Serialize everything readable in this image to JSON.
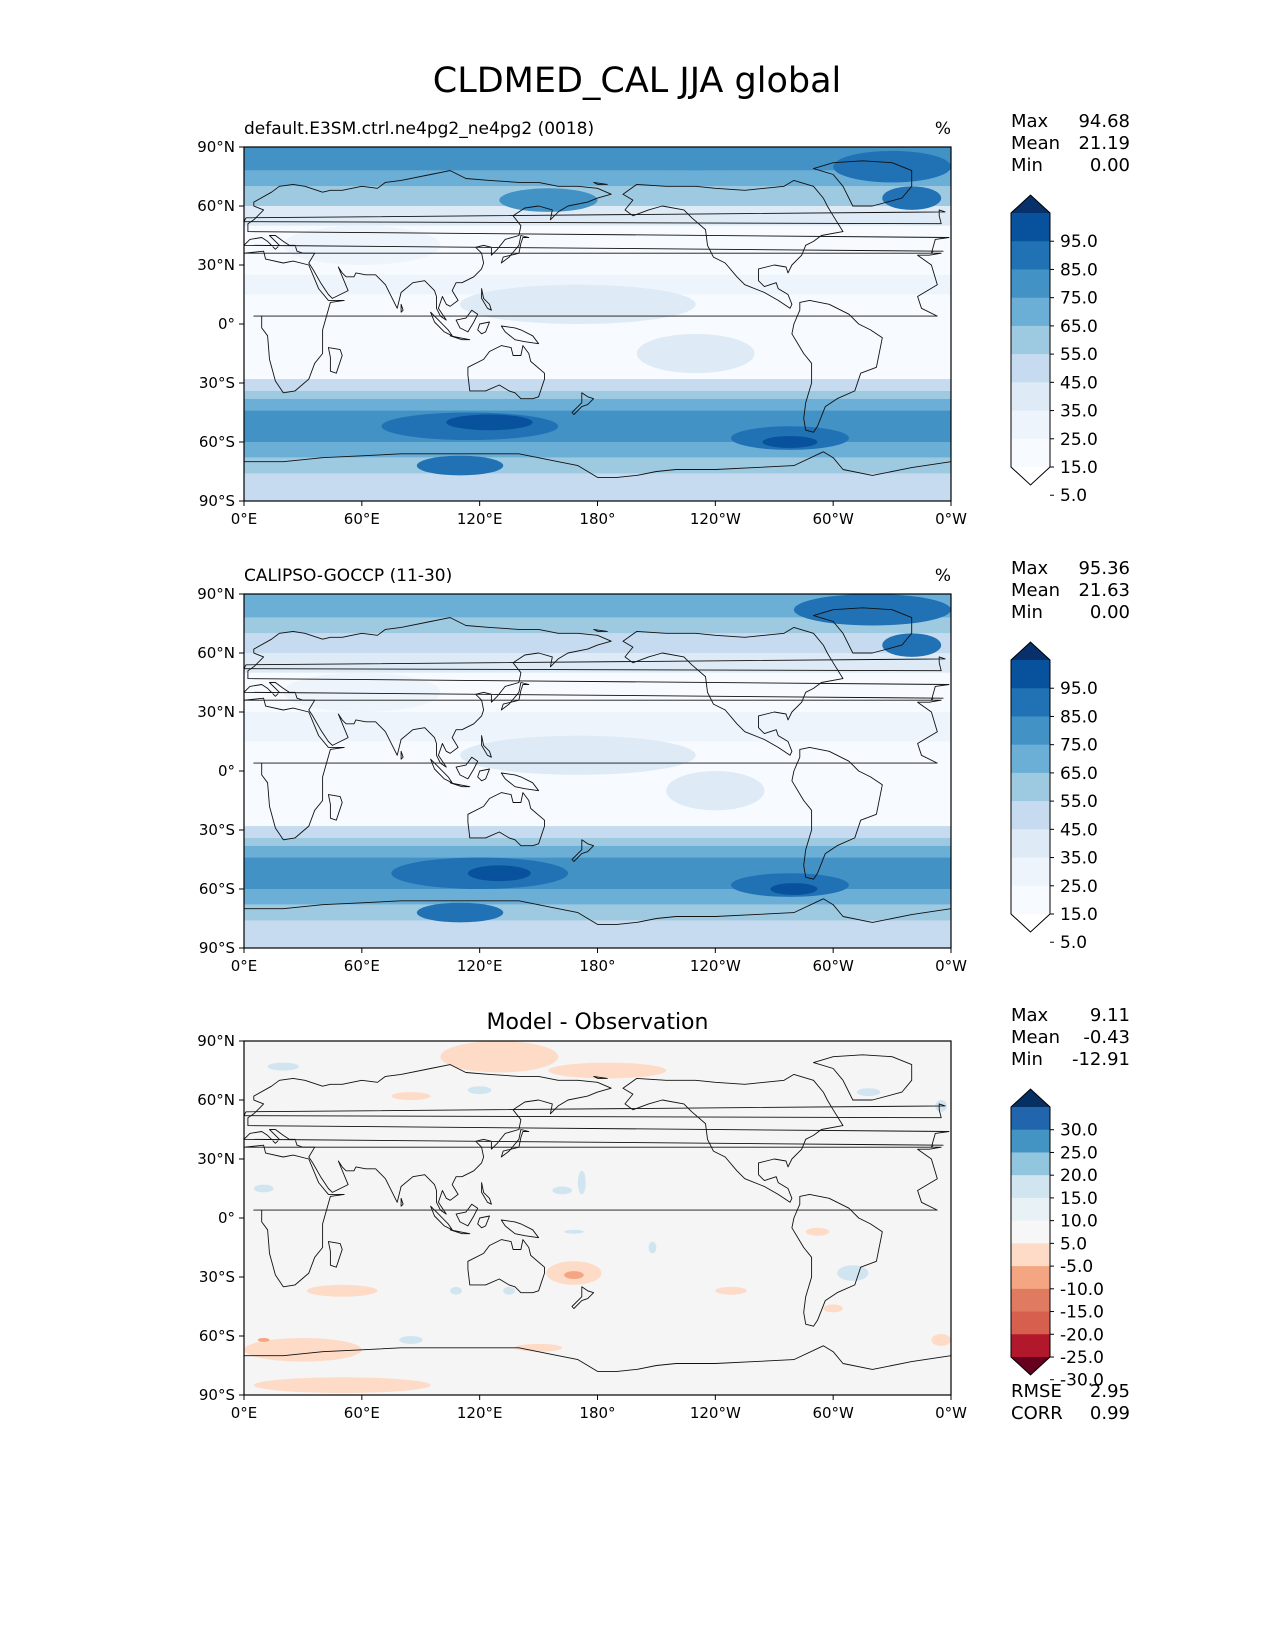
{
  "chart_data": {
    "title": "CLDMED_CAL JJA global",
    "xticks": [
      "0°E",
      "60°E",
      "120°E",
      "180°",
      "120°W",
      "60°W",
      "0°W"
    ],
    "yticks": [
      "90°N",
      "60°N",
      "30°N",
      "0°",
      "30°S",
      "60°S",
      "90°S"
    ],
    "panels": [
      {
        "type": "heatmap",
        "name": "model",
        "title_left": "default.E3SM.ctrl.ne4pg2_ne4pg2 (0018)",
        "title_right": "%",
        "title_center": "",
        "stats": [
          {
            "label": "Max",
            "value": "94.68"
          },
          {
            "label": "Mean",
            "value": "21.19"
          },
          {
            "label": "Min",
            "value": "0.00"
          }
        ],
        "colorbar": {
          "levels": [
            "95.0",
            "85.0",
            "75.0",
            "65.0",
            "55.0",
            "45.0",
            "35.0",
            "25.0",
            "15.0",
            "5.0"
          ],
          "colors": [
            "#08306b",
            "#08519c",
            "#2171b5",
            "#4292c6",
            "#6baed6",
            "#9ecae1",
            "#c6dbef",
            "#deebf7",
            "#eef4fb",
            "#f7fbff",
            "#ffffff"
          ]
        },
        "ocean": "#f7fbff",
        "bands": [
          {
            "lat": [
              90,
              78
            ],
            "color": "#4292c6"
          },
          {
            "lat": [
              78,
              70
            ],
            "color": "#6baed6"
          },
          {
            "lat": [
              70,
              60
            ],
            "color": "#9ecae1"
          },
          {
            "lat": [
              60,
              50
            ],
            "color": "#deebf7"
          },
          {
            "lat": [
              25,
              15
            ],
            "color": "#eef4fb"
          },
          {
            "lat": [
              -28,
              -34
            ],
            "color": "#c6dbef"
          },
          {
            "lat": [
              -34,
              -38
            ],
            "color": "#9ecae1"
          },
          {
            "lat": [
              -38,
              -44
            ],
            "color": "#6baed6"
          },
          {
            "lat": [
              -44,
              -60
            ],
            "color": "#4292c6"
          },
          {
            "lat": [
              -60,
              -68
            ],
            "color": "#6baed6"
          },
          {
            "lat": [
              -68,
              -76
            ],
            "color": "#9ecae1"
          },
          {
            "lat": [
              -76,
              -90
            ],
            "color": "#c6dbef"
          }
        ],
        "blobs": [
          {
            "lon": 115,
            "lat": -52,
            "rlon": 45,
            "rlat": 7,
            "color": "#2171b5"
          },
          {
            "lon": 125,
            "lat": -50,
            "rlon": 22,
            "rlat": 4,
            "color": "#08519c"
          },
          {
            "lon": 110,
            "lat": -72,
            "rlon": 22,
            "rlat": 5,
            "color": "#2171b5"
          },
          {
            "lon": 278,
            "lat": -58,
            "rlon": 30,
            "rlat": 6,
            "color": "#2171b5"
          },
          {
            "lon": 278,
            "lat": -60,
            "rlon": 14,
            "rlat": 3,
            "color": "#08519c"
          },
          {
            "lon": 155,
            "lat": 63,
            "rlon": 25,
            "rlat": 6,
            "color": "#4292c6"
          },
          {
            "lon": 230,
            "lat": 84,
            "rlon": 50,
            "rlat": 6,
            "color": "#4292c6"
          },
          {
            "lon": 330,
            "lat": 80,
            "rlon": 30,
            "rlat": 8,
            "color": "#2171b5"
          },
          {
            "lon": 340,
            "lat": 64,
            "rlon": 15,
            "rlat": 6,
            "color": "#2171b5"
          },
          {
            "lon": 170,
            "lat": 10,
            "rlon": 60,
            "rlat": 10,
            "color": "#deebf7"
          },
          {
            "lon": 230,
            "lat": -15,
            "rlon": 30,
            "rlat": 10,
            "color": "#deebf7"
          },
          {
            "lon": 60,
            "lat": 40,
            "rlon": 40,
            "rlat": 10,
            "color": "#eef4fb"
          }
        ]
      },
      {
        "type": "heatmap",
        "name": "observation",
        "title_left": "CALIPSO-GOCCP (11-30)",
        "title_right": "%",
        "title_center": "",
        "stats": [
          {
            "label": "Max",
            "value": "95.36"
          },
          {
            "label": "Mean",
            "value": "21.63"
          },
          {
            "label": "Min",
            "value": "0.00"
          }
        ],
        "colorbar": {
          "levels": [
            "95.0",
            "85.0",
            "75.0",
            "65.0",
            "55.0",
            "45.0",
            "35.0",
            "25.0",
            "15.0",
            "5.0"
          ],
          "colors": [
            "#08306b",
            "#08519c",
            "#2171b5",
            "#4292c6",
            "#6baed6",
            "#9ecae1",
            "#c6dbef",
            "#deebf7",
            "#eef4fb",
            "#f7fbff",
            "#ffffff"
          ]
        },
        "ocean": "#f7fbff",
        "bands": [
          {
            "lat": [
              90,
              78
            ],
            "color": "#6baed6"
          },
          {
            "lat": [
              78,
              70
            ],
            "color": "#9ecae1"
          },
          {
            "lat": [
              70,
              60
            ],
            "color": "#c6dbef"
          },
          {
            "lat": [
              60,
              50
            ],
            "color": "#deebf7"
          },
          {
            "lat": [
              30,
              15
            ],
            "color": "#eef4fb"
          },
          {
            "lat": [
              -28,
              -34
            ],
            "color": "#c6dbef"
          },
          {
            "lat": [
              -34,
              -38
            ],
            "color": "#9ecae1"
          },
          {
            "lat": [
              -38,
              -44
            ],
            "color": "#6baed6"
          },
          {
            "lat": [
              -44,
              -60
            ],
            "color": "#4292c6"
          },
          {
            "lat": [
              -60,
              -68
            ],
            "color": "#6baed6"
          },
          {
            "lat": [
              -68,
              -76
            ],
            "color": "#9ecae1"
          },
          {
            "lat": [
              -76,
              -90
            ],
            "color": "#c6dbef"
          }
        ],
        "blobs": [
          {
            "lon": 120,
            "lat": -52,
            "rlon": 45,
            "rlat": 8,
            "color": "#2171b5"
          },
          {
            "lon": 130,
            "lat": -52,
            "rlon": 16,
            "rlat": 4,
            "color": "#08519c"
          },
          {
            "lon": 110,
            "lat": -72,
            "rlon": 22,
            "rlat": 5,
            "color": "#2171b5"
          },
          {
            "lon": 278,
            "lat": -58,
            "rlon": 30,
            "rlat": 6,
            "color": "#2171b5"
          },
          {
            "lon": 280,
            "lat": -60,
            "rlon": 12,
            "rlat": 3,
            "color": "#08519c"
          },
          {
            "lon": 320,
            "lat": 82,
            "rlon": 40,
            "rlat": 8,
            "color": "#2171b5"
          },
          {
            "lon": 340,
            "lat": 64,
            "rlon": 15,
            "rlat": 6,
            "color": "#2171b5"
          },
          {
            "lon": 170,
            "lat": 8,
            "rlon": 60,
            "rlat": 10,
            "color": "#deebf7"
          },
          {
            "lon": 240,
            "lat": -10,
            "rlon": 25,
            "rlat": 10,
            "color": "#deebf7"
          },
          {
            "lon": 60,
            "lat": 40,
            "rlon": 40,
            "rlat": 10,
            "color": "#eef4fb"
          }
        ]
      },
      {
        "type": "heatmap",
        "name": "difference",
        "title_left": "",
        "title_right": "",
        "title_center": "Model - Observation",
        "stats": [
          {
            "label": "Max",
            "value": "9.11"
          },
          {
            "label": "Mean",
            "value": "-0.43"
          },
          {
            "label": "Min",
            "value": "-12.91"
          }
        ],
        "colorbar": {
          "levels": [
            "30.0",
            "25.0",
            "20.0",
            "15.0",
            "10.0",
            "5.0",
            "-5.0",
            "-10.0",
            "-15.0",
            "-20.0",
            "-25.0",
            "-30.0"
          ],
          "colors": [
            "#053061",
            "#2166ac",
            "#4393c3",
            "#92c5de",
            "#d1e5f0",
            "#e8f1f6",
            "#f7f7f7",
            "#fddbc7",
            "#f4a582",
            "#e07b62",
            "#d6604d",
            "#b2182b",
            "#67001f"
          ]
        },
        "ocean": "#f5f5f5",
        "bands": [],
        "blobs": [
          {
            "lon": 130,
            "lat": 82,
            "rlon": 30,
            "rlat": 8,
            "color": "#fddbc7"
          },
          {
            "lon": 185,
            "lat": 75,
            "rlon": 30,
            "rlat": 4,
            "color": "#fddbc7"
          },
          {
            "lon": 85,
            "lat": 62,
            "rlon": 10,
            "rlat": 2,
            "color": "#fddbc7"
          },
          {
            "lon": 30,
            "lat": -67,
            "rlon": 30,
            "rlat": 6,
            "color": "#fddbc7"
          },
          {
            "lon": 50,
            "lat": -85,
            "rlon": 45,
            "rlat": 4,
            "color": "#fddbc7"
          },
          {
            "lon": 168,
            "lat": -28,
            "rlon": 14,
            "rlat": 6,
            "color": "#fddbc7"
          },
          {
            "lon": 168,
            "lat": -29,
            "rlon": 5,
            "rlat": 2,
            "color": "#f4a582"
          },
          {
            "lon": 50,
            "lat": -37,
            "rlon": 18,
            "rlat": 3,
            "color": "#fddbc7"
          },
          {
            "lon": 150,
            "lat": -66,
            "rlon": 12,
            "rlat": 2,
            "color": "#fddbc7"
          },
          {
            "lon": 248,
            "lat": -37,
            "rlon": 8,
            "rlat": 2,
            "color": "#fddbc7"
          },
          {
            "lon": 292,
            "lat": -7,
            "rlon": 6,
            "rlat": 2,
            "color": "#fddbc7"
          },
          {
            "lon": 300,
            "lat": -46,
            "rlon": 5,
            "rlat": 2,
            "color": "#fddbc7"
          },
          {
            "lon": 355,
            "lat": -62,
            "rlon": 5,
            "rlat": 3,
            "color": "#fddbc7"
          },
          {
            "lon": 10,
            "lat": -62,
            "rlon": 3,
            "rlat": 1,
            "color": "#f4a582"
          },
          {
            "lon": 85,
            "lat": -62,
            "rlon": 6,
            "rlat": 2,
            "color": "#d1e5f0"
          },
          {
            "lon": 120,
            "lat": 65,
            "rlon": 6,
            "rlat": 2,
            "color": "#d1e5f0"
          },
          {
            "lon": 10,
            "lat": 15,
            "rlon": 5,
            "rlat": 2,
            "color": "#d1e5f0"
          },
          {
            "lon": 20,
            "lat": 77,
            "rlon": 8,
            "rlat": 2,
            "color": "#d1e5f0"
          },
          {
            "lon": 162,
            "lat": 14,
            "rlon": 5,
            "rlat": 2,
            "color": "#d1e5f0"
          },
          {
            "lon": 172,
            "lat": 18,
            "rlon": 2,
            "rlat": 6,
            "color": "#d1e5f0"
          },
          {
            "lon": 168,
            "lat": -7,
            "rlon": 5,
            "rlat": 1,
            "color": "#d1e5f0"
          },
          {
            "lon": 208,
            "lat": -15,
            "rlon": 2,
            "rlat": 3,
            "color": "#d1e5f0"
          },
          {
            "lon": 310,
            "lat": -28,
            "rlon": 8,
            "rlat": 4,
            "color": "#d1e5f0"
          },
          {
            "lon": 318,
            "lat": 64,
            "rlon": 6,
            "rlat": 2,
            "color": "#d1e5f0"
          },
          {
            "lon": 355,
            "lat": 57,
            "rlon": 3,
            "rlat": 3,
            "color": "#d1e5f0"
          },
          {
            "lon": 135,
            "lat": -37,
            "rlon": 3,
            "rlat": 2,
            "color": "#d1e5f0"
          },
          {
            "lon": 108,
            "lat": -37,
            "rlon": 3,
            "rlat": 2,
            "color": "#d1e5f0"
          }
        ],
        "extra_stats": [
          {
            "label": "RMSE",
            "value": "2.95"
          },
          {
            "label": "CORR",
            "value": "0.99"
          }
        ]
      }
    ]
  }
}
